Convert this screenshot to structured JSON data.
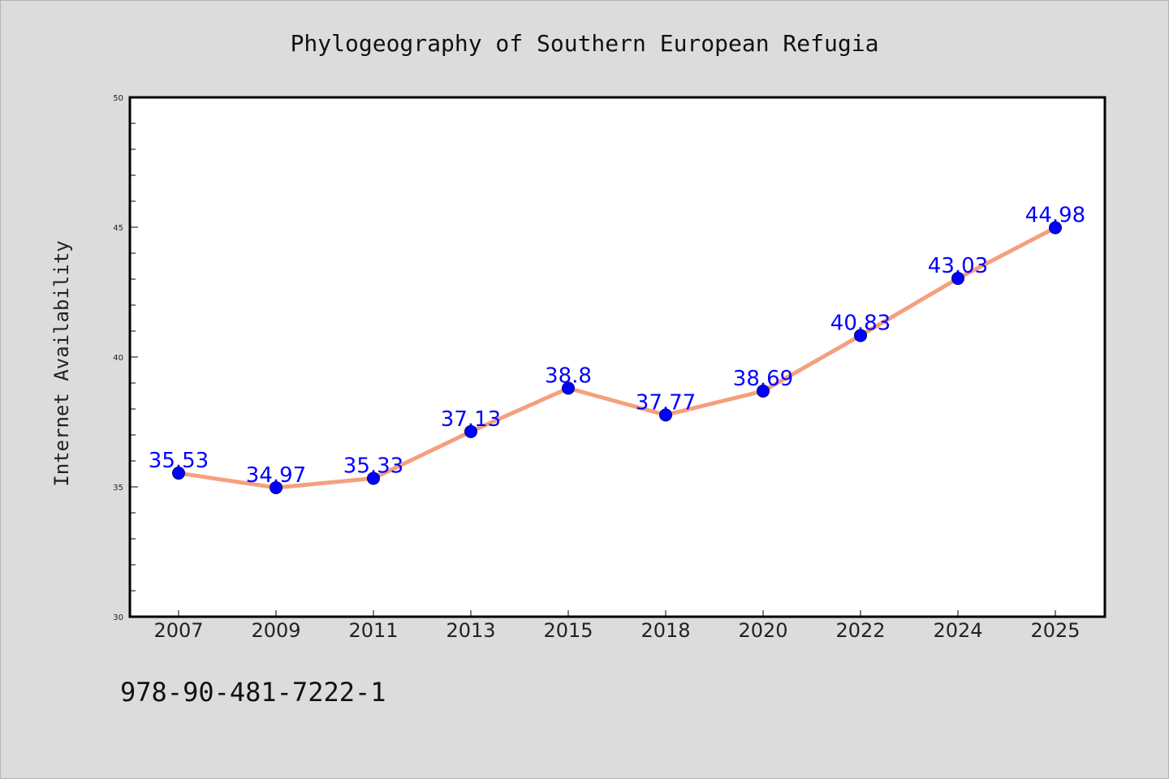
{
  "chart_data": {
    "type": "line",
    "title": "Phylogeography of Southern European Refugia",
    "xlabel": "",
    "ylabel": "Internet Availability",
    "categories": [
      "2007",
      "2009",
      "2011",
      "2013",
      "2015",
      "2018",
      "2020",
      "2022",
      "2024",
      "2025"
    ],
    "series": [
      {
        "values": [
          35.53,
          34.97,
          35.33,
          37.13,
          38.8,
          37.77,
          38.69,
          40.83,
          43.03,
          44.98
        ],
        "labels": [
          "35.53",
          "34.97",
          "35.33",
          "37.13",
          "38.8",
          "37.77",
          "38.69",
          "40.83",
          "43.03",
          "44.98"
        ],
        "line_color": "#f4a07e",
        "marker_color": "#0000ff"
      }
    ],
    "ylim": [
      30,
      50
    ],
    "yticks": [
      "30",
      "35",
      "40",
      "45",
      "50"
    ],
    "ytick_values": [
      30,
      35,
      40,
      45,
      50
    ],
    "grid": false,
    "legend": "none",
    "background": "#dcdcdc",
    "plot_background": "#ffffff",
    "label_color": "#0000ff"
  },
  "footer": {
    "isbn": "978-90-481-7222-1"
  }
}
